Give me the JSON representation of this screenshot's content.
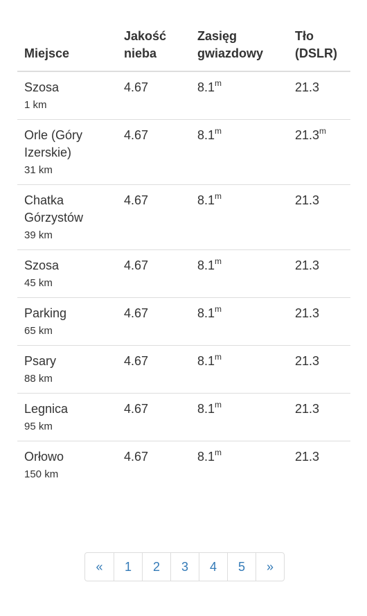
{
  "table": {
    "headers": {
      "place": "Miejsce",
      "sky": "Jakość nieba",
      "range": "Zasięg gwiazdowy",
      "background": "Tło (DSLR)"
    },
    "unit_mag": "m",
    "rows": [
      {
        "name": "Szosa",
        "distance": "1 km",
        "sky": "4.67",
        "range": "8.1",
        "background": "21.3",
        "background_sup": ""
      },
      {
        "name": "Orle (Góry Izerskie)",
        "distance": "31 km",
        "sky": "4.67",
        "range": "8.1",
        "background": "21.3",
        "background_sup": "m"
      },
      {
        "name": "Chatka Górzystów",
        "distance": "39 km",
        "sky": "4.67",
        "range": "8.1",
        "background": "21.3",
        "background_sup": ""
      },
      {
        "name": "Szosa",
        "distance": "45 km",
        "sky": "4.67",
        "range": "8.1",
        "background": "21.3",
        "background_sup": ""
      },
      {
        "name": "Parking",
        "distance": "65 km",
        "sky": "4.67",
        "range": "8.1",
        "background": "21.3",
        "background_sup": ""
      },
      {
        "name": "Psary",
        "distance": "88 km",
        "sky": "4.67",
        "range": "8.1",
        "background": "21.3",
        "background_sup": ""
      },
      {
        "name": "Legnica",
        "distance": "95 km",
        "sky": "4.67",
        "range": "8.1",
        "background": "21.3",
        "background_sup": ""
      },
      {
        "name": "Orłowo",
        "distance": "150 km",
        "sky": "4.67",
        "range": "8.1",
        "background": "21.3",
        "background_sup": ""
      }
    ]
  },
  "pagination": {
    "prev": "«",
    "pages": [
      "1",
      "2",
      "3",
      "4",
      "5"
    ],
    "next": "»"
  },
  "colors": {
    "link": "#337ab7",
    "border": "#dddddd",
    "text": "#333333"
  }
}
